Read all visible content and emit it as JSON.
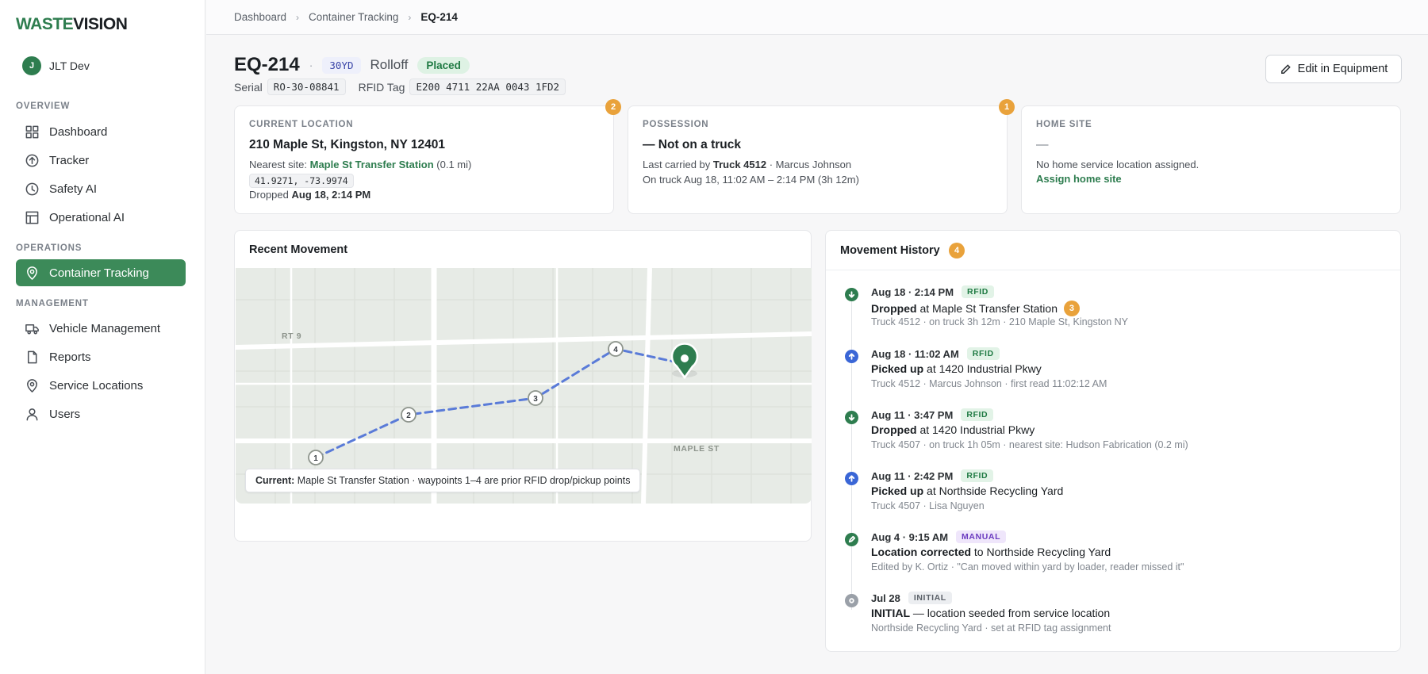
{
  "brand": {
    "logo_part1": "WASTE",
    "logo_part2": "VISION"
  },
  "user": {
    "initial": "J",
    "name": "JLT Dev"
  },
  "nav": {
    "overview_label": "OVERVIEW",
    "operations_label": "OPERATIONS",
    "management_label": "MANAGEMENT",
    "items": {
      "dashboard": "Dashboard",
      "tracker": "Tracker",
      "safety_ai": "Safety AI",
      "operational_ai": "Operational AI",
      "container_tracking": "Container Tracking",
      "vehicle_management": "Vehicle Management",
      "reports": "Reports",
      "service_locations": "Service Locations",
      "users": "Users"
    },
    "active": "container_tracking"
  },
  "breadcrumb": {
    "item1": "Dashboard",
    "item2": "Container Tracking",
    "current": "EQ-214",
    "sep": "›"
  },
  "equipment": {
    "id": "EQ-214",
    "dot": "·",
    "size": "30YD",
    "type": "Rolloff",
    "status": "Placed",
    "serial_label": "Serial",
    "serial": "RO-30-08841",
    "rfid_label": "RFID Tag",
    "rfid": "E200 4711 22AA 0043 1FD2",
    "edit_button": "Edit in Equipment"
  },
  "cards": {
    "location": {
      "label": "CURRENT LOCATION",
      "badge": "2",
      "address": "210 Maple St, Kingston, NY 12401",
      "nearest_prefix": "Nearest site:",
      "nearest_site": "Maple St Transfer Station",
      "nearest_distance": "(0.1 mi)",
      "coords": "41.9271, -73.9974",
      "dropped_prefix": "Dropped",
      "dropped_time": "Aug 18, 2:14 PM"
    },
    "possession": {
      "label": "POSSESSION",
      "badge": "1",
      "title": "— Not on a truck",
      "carried_prefix": "Last carried by",
      "truck": "Truck 4512",
      "carried_suffix": "· Marcus Johnson",
      "on_truck": "On truck Aug 18, 11:02 AM – 2:14 PM (3h 12m)"
    },
    "home_site": {
      "label": "HOME SITE",
      "title": "—",
      "text": "No home service location assigned.",
      "link": "Assign home site"
    }
  },
  "map": {
    "title": "Recent Movement",
    "road_rt9": "RT 9",
    "road_maple": "MAPLE ST",
    "waypoints": [
      "1",
      "2",
      "3",
      "4"
    ],
    "caption_bold": "Current:",
    "caption_text": "Maple St Transfer Station · waypoints 1–4 are prior RFID drop/pickup points"
  },
  "history": {
    "title": "Movement History",
    "badge": "4",
    "entries": [
      {
        "time": "Aug 18 · 2:14 PM",
        "tag": "RFID",
        "action": "Dropped",
        "rest": "at Maple St Transfer Station",
        "badge": "3",
        "sub": "Truck 4512 · on truck 3h 12m · 210 Maple St, Kingston NY",
        "icon": "arrow-down-icon"
      },
      {
        "time": "Aug 18 · 11:02 AM",
        "tag": "RFID",
        "action": "Picked up",
        "rest": "at 1420 Industrial Pkwy",
        "sub": "Truck 4512 · Marcus Johnson · first read 11:02:12 AM",
        "icon": "arrow-up-icon"
      },
      {
        "time": "Aug 11 · 3:47 PM",
        "tag": "RFID",
        "action": "Dropped",
        "rest": "at 1420 Industrial Pkwy",
        "sub": "Truck 4507 · on truck 1h 05m · nearest site: Hudson Fabrication (0.2 mi)",
        "icon": "arrow-down-icon"
      },
      {
        "time": "Aug 11 · 2:42 PM",
        "tag": "RFID",
        "action": "Picked up",
        "rest": "at Northside Recycling Yard",
        "sub": "Truck 4507 · Lisa Nguyen",
        "icon": "arrow-up-icon"
      },
      {
        "time": "Aug 4 · 9:15 AM",
        "tag": "MANUAL",
        "action": "Location corrected",
        "rest": "to Northside Recycling Yard",
        "sub": "Edited by K. Ortiz · \"Can moved within yard by loader, reader missed it\"",
        "icon": "pencil-icon"
      },
      {
        "time": "Jul 28",
        "tag": "INITIAL",
        "action": "INITIAL",
        "rest": "— location seeded from service location",
        "sub": "Northside Recycling Yard · set at RFID tag assignment",
        "icon": "target-icon"
      }
    ]
  }
}
